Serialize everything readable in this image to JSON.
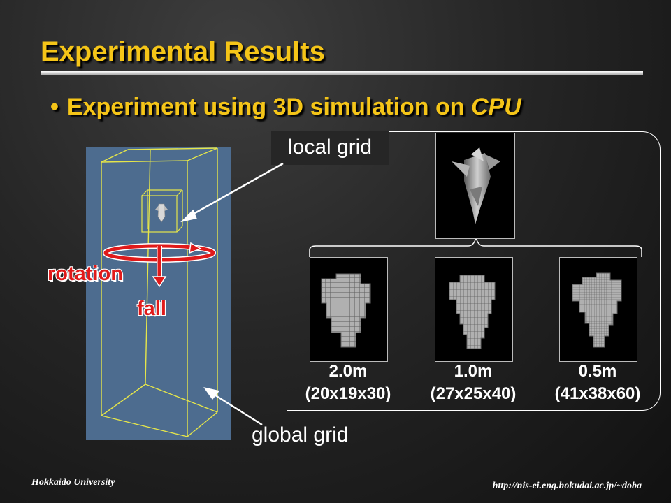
{
  "slide": {
    "title": "Experimental Results",
    "bullet": {
      "marker": "•",
      "text": "Experiment using 3D simulation on ",
      "emphasis": "CPU"
    }
  },
  "figure": {
    "local_grid_label": "local grid",
    "global_grid_label": "global grid",
    "rotation_label": "rotation",
    "fall_label": "fall",
    "resolutions": [
      {
        "size": "2.0m",
        "grid": "(20x19x30)"
      },
      {
        "size": "1.0m",
        "grid": "(27x25x40)"
      },
      {
        "size": "0.5m",
        "grid": "(41x38x60)"
      }
    ]
  },
  "footer": {
    "institution": "Hokkaido University",
    "url": "http://nis-ei.eng.hokudai.ac.jp/~doba"
  },
  "colors": {
    "title": "#f5c518",
    "simulation_background": "#4d6c8f",
    "wireframe": "#e6e64a",
    "arrows": "#e01a1a"
  }
}
